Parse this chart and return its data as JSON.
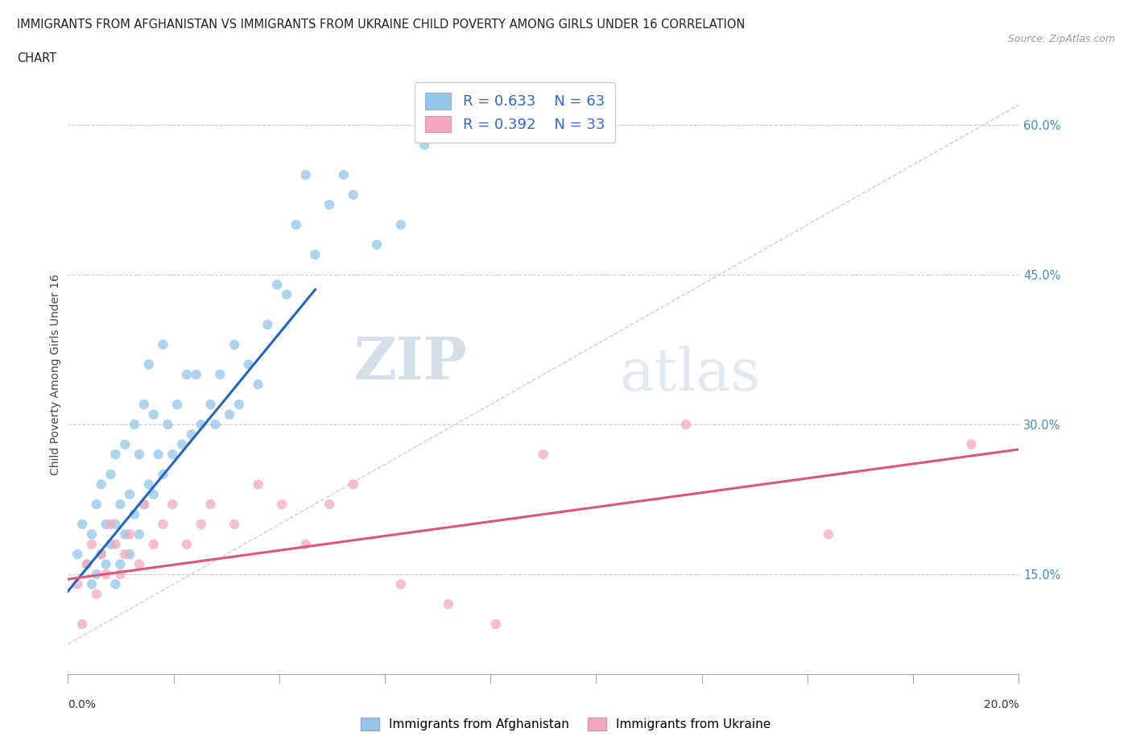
{
  "title_line1": "IMMIGRANTS FROM AFGHANISTAN VS IMMIGRANTS FROM UKRAINE CHILD POVERTY AMONG GIRLS UNDER 16 CORRELATION",
  "title_line2": "CHART",
  "source": "Source: ZipAtlas.com",
  "ylabel": "Child Poverty Among Girls Under 16",
  "ytick_values": [
    0.15,
    0.3,
    0.45,
    0.6
  ],
  "xlim": [
    0.0,
    0.2
  ],
  "ylim": [
    0.05,
    0.65
  ],
  "afghanistan_color": "#92c5e8",
  "ukraine_color": "#f4a8c0",
  "trendline_afghanistan_color": "#2266bb",
  "trendline_ukraine_color": "#dd5577",
  "diagonal_color": "#b0c8e0",
  "watermark_zip": "ZIP",
  "watermark_atlas": "atlas",
  "afghanistan_x": [
    0.002,
    0.003,
    0.004,
    0.005,
    0.005,
    0.006,
    0.006,
    0.007,
    0.007,
    0.008,
    0.008,
    0.009,
    0.009,
    0.01,
    0.01,
    0.01,
    0.011,
    0.011,
    0.012,
    0.012,
    0.013,
    0.013,
    0.014,
    0.014,
    0.015,
    0.015,
    0.016,
    0.016,
    0.017,
    0.017,
    0.018,
    0.018,
    0.019,
    0.02,
    0.02,
    0.021,
    0.022,
    0.023,
    0.024,
    0.025,
    0.026,
    0.027,
    0.028,
    0.03,
    0.031,
    0.032,
    0.034,
    0.035,
    0.036,
    0.038,
    0.04,
    0.042,
    0.044,
    0.046,
    0.048,
    0.05,
    0.052,
    0.055,
    0.058,
    0.06,
    0.065,
    0.07,
    0.075
  ],
  "afghanistan_y": [
    0.17,
    0.2,
    0.16,
    0.14,
    0.19,
    0.15,
    0.22,
    0.17,
    0.24,
    0.16,
    0.2,
    0.25,
    0.18,
    0.14,
    0.2,
    0.27,
    0.16,
    0.22,
    0.19,
    0.28,
    0.17,
    0.23,
    0.21,
    0.3,
    0.19,
    0.27,
    0.22,
    0.32,
    0.24,
    0.36,
    0.23,
    0.31,
    0.27,
    0.25,
    0.38,
    0.3,
    0.27,
    0.32,
    0.28,
    0.35,
    0.29,
    0.35,
    0.3,
    0.32,
    0.3,
    0.35,
    0.31,
    0.38,
    0.32,
    0.36,
    0.34,
    0.4,
    0.44,
    0.43,
    0.5,
    0.55,
    0.47,
    0.52,
    0.55,
    0.53,
    0.48,
    0.5,
    0.58
  ],
  "ukraine_x": [
    0.002,
    0.003,
    0.004,
    0.005,
    0.006,
    0.007,
    0.008,
    0.009,
    0.01,
    0.011,
    0.012,
    0.013,
    0.015,
    0.016,
    0.018,
    0.02,
    0.022,
    0.025,
    0.028,
    0.03,
    0.035,
    0.04,
    0.045,
    0.05,
    0.055,
    0.06,
    0.07,
    0.08,
    0.09,
    0.1,
    0.13,
    0.16,
    0.19
  ],
  "ukraine_y": [
    0.14,
    0.1,
    0.16,
    0.18,
    0.13,
    0.17,
    0.15,
    0.2,
    0.18,
    0.15,
    0.17,
    0.19,
    0.16,
    0.22,
    0.18,
    0.2,
    0.22,
    0.18,
    0.2,
    0.22,
    0.2,
    0.24,
    0.22,
    0.18,
    0.22,
    0.24,
    0.14,
    0.12,
    0.1,
    0.27,
    0.3,
    0.19,
    0.28
  ],
  "afg_trend_x": [
    0.0,
    0.052
  ],
  "afg_trend_y": [
    0.133,
    0.435
  ],
  "ukr_trend_x": [
    0.0,
    0.2
  ],
  "ukr_trend_y": [
    0.145,
    0.275
  ]
}
